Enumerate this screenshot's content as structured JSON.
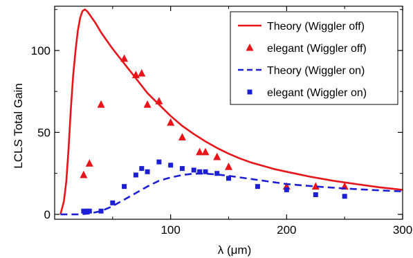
{
  "chart_data": {
    "type": "line",
    "xlabel": "λ (μm)",
    "ylabel": "LCLS Total Gain",
    "xlim": [
      0,
      300
    ],
    "ylim": [
      -3,
      127
    ],
    "x_ticks": [
      100,
      200,
      300
    ],
    "y_ticks": [
      0,
      50,
      100
    ],
    "x_tick_labels": [
      "100",
      "200",
      "300"
    ],
    "y_tick_labels": [
      "0",
      "50",
      "100"
    ],
    "grid": false,
    "legend_position": "top-right",
    "series": [
      {
        "name": "Theory (Wiggler off)",
        "kind": "line",
        "style": "solid",
        "color": "#e8141a",
        "x": [
          5,
          8,
          10,
          12,
          14,
          16,
          18,
          20,
          22,
          24,
          26,
          28,
          30,
          35,
          40,
          45,
          50,
          60,
          70,
          80,
          90,
          100,
          110,
          120,
          130,
          140,
          150,
          160,
          170,
          180,
          190,
          200,
          220,
          240,
          260,
          280,
          300
        ],
        "y": [
          0,
          8,
          20,
          40,
          65,
          85,
          100,
          112,
          120,
          124,
          125,
          124,
          122,
          117,
          111,
          106,
          101,
          92,
          83,
          74,
          67,
          60,
          54,
          49,
          44.5,
          40.5,
          37,
          34,
          31.5,
          29.5,
          27.5,
          26,
          23,
          20.5,
          18.5,
          16.5,
          15
        ]
      },
      {
        "name": "elegant (Wiggler off)",
        "kind": "marker",
        "marker": "triangle",
        "color": "#e8141a",
        "x": [
          25,
          30,
          40,
          60,
          70,
          75,
          80,
          90,
          100,
          110,
          125,
          130,
          140,
          150,
          200,
          225,
          250
        ],
        "y": [
          24,
          31,
          67,
          95,
          85,
          86,
          67,
          69,
          56,
          47,
          38,
          38,
          35,
          29,
          17,
          17,
          17
        ]
      },
      {
        "name": "Theory (Wiggler on)",
        "kind": "line",
        "style": "dashed",
        "color": "#1c1fd6",
        "x": [
          5,
          20,
          30,
          40,
          50,
          60,
          70,
          80,
          90,
          100,
          110,
          120,
          130,
          140,
          150,
          175,
          200,
          225,
          250,
          275,
          300
        ],
        "y": [
          0,
          0,
          0.5,
          2,
          5,
          9,
          13,
          17,
          20.5,
          22.5,
          24,
          24.8,
          24.8,
          24.3,
          23.5,
          21,
          18.5,
          17,
          15.8,
          14.8,
          14
        ]
      },
      {
        "name": "elegant (Wiggler on)",
        "kind": "marker",
        "marker": "square",
        "color": "#1c1fd6",
        "x": [
          25,
          28,
          30,
          40,
          50,
          60,
          70,
          75,
          80,
          90,
          100,
          110,
          120,
          125,
          130,
          140,
          150,
          175,
          200,
          225,
          250
        ],
        "y": [
          2,
          2,
          2,
          2,
          7,
          17,
          24,
          28,
          26,
          32,
          30,
          28,
          27,
          26,
          26,
          25,
          22,
          17,
          15,
          12,
          11
        ]
      }
    ]
  }
}
